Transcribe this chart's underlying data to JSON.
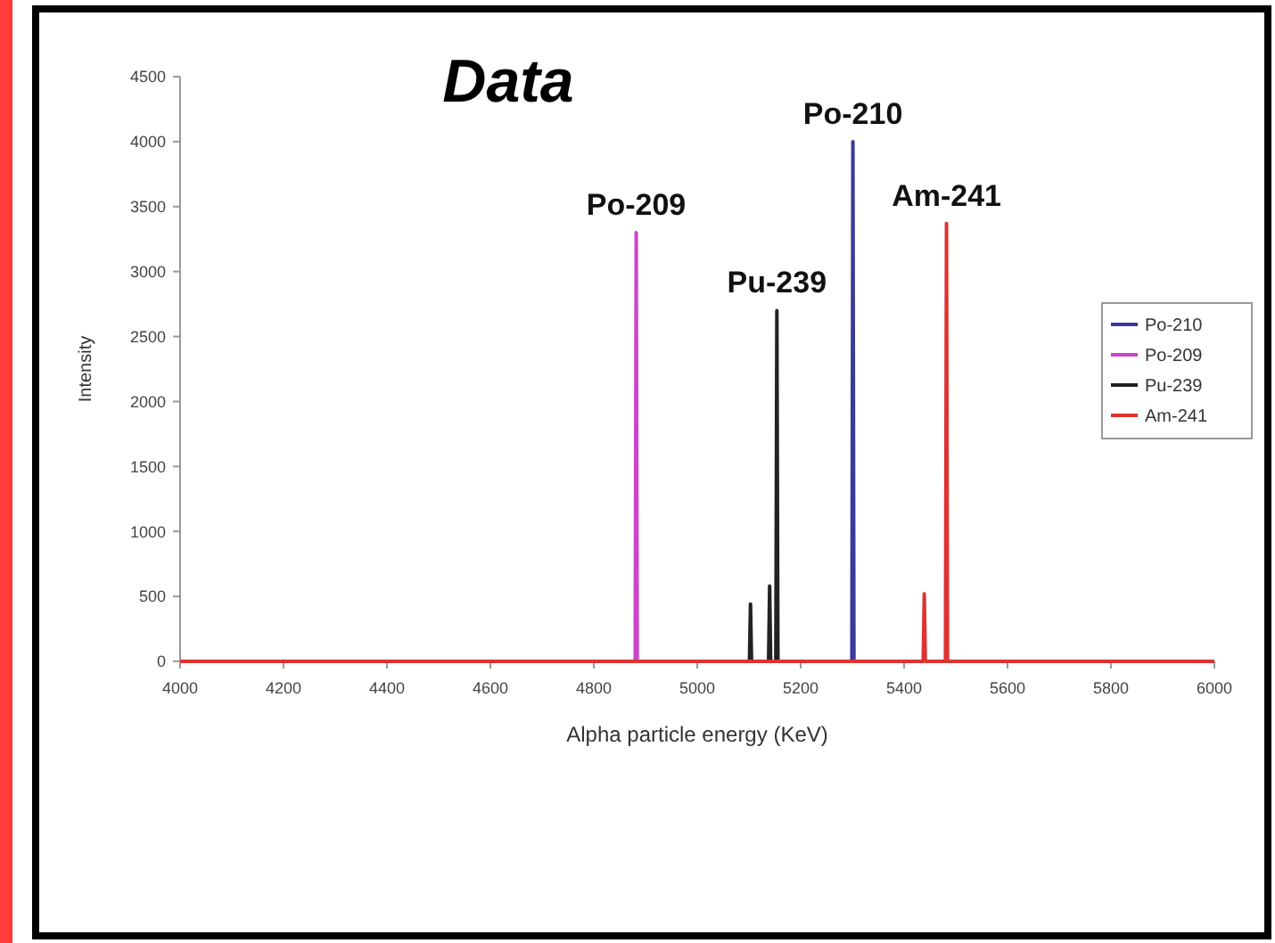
{
  "chart_data": {
    "type": "line",
    "title": "Data",
    "xlabel": "Alpha particle energy (KeV)",
    "ylabel": "Intensity",
    "xlim": [
      4000,
      6000
    ],
    "xticks": [
      4000,
      4200,
      4400,
      4600,
      4800,
      5000,
      5200,
      5400,
      5600,
      5800,
      6000
    ],
    "ylim": [
      0,
      4500
    ],
    "yticks": [
      0,
      500,
      1000,
      1500,
      2000,
      2500,
      3000,
      3500,
      4000,
      4500
    ],
    "grid": false,
    "legend": "right",
    "marker": "none",
    "line_style": "solid",
    "series": [
      {
        "name": "Po-210",
        "color": "#3a3a9a",
        "x": [
          5299,
          5301,
          5303
        ],
        "values": [
          0,
          4000,
          0
        ]
      },
      {
        "name": "Po-209",
        "color": "#cc44cc",
        "x": [
          4880,
          4882,
          4884
        ],
        "values": [
          0,
          3300,
          0
        ]
      },
      {
        "name": "Pu-239",
        "color": "#222222",
        "x": [
          5101,
          5103,
          5105,
          5138,
          5140,
          5142,
          5152,
          5154,
          5156
        ],
        "values": [
          0,
          440,
          0,
          0,
          580,
          0,
          0,
          2700,
          0
        ]
      },
      {
        "name": "Am-241",
        "color": "#dd3333",
        "x": [
          4000,
          5437,
          5439,
          5441,
          5480,
          5482,
          5484,
          6000
        ],
        "values": [
          0,
          0,
          520,
          0,
          0,
          3370,
          0,
          0
        ]
      }
    ],
    "annotations": [
      {
        "text": "Po-209",
        "x": 4882,
        "y": 3300
      },
      {
        "text": "Po-210",
        "x": 5301,
        "y": 4000
      },
      {
        "text": "Pu-239",
        "x": 5154,
        "y": 2700
      },
      {
        "text": "Am-241",
        "x": 5482,
        "y": 3370
      }
    ]
  }
}
